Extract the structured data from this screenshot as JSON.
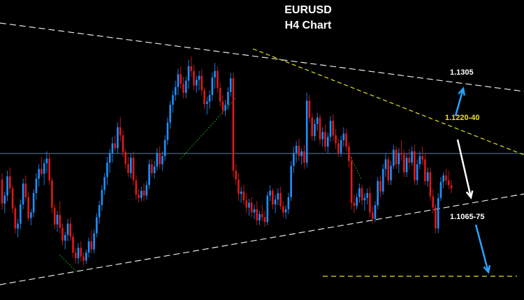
{
  "chart_data": {
    "type": "candlestick",
    "title": "EURUSD",
    "subtitle": "H4 Chart",
    "background": "#000000",
    "colors": {
      "bull": "#1e90ff",
      "bear": "#e01818",
      "wick": "#c8c8c8",
      "trendline": "#e8e8e8",
      "resistance_line": "#e0e020",
      "target_line": "#e0e020",
      "guide_line": "#10a010",
      "hline": "#5a7fa0",
      "arrow_up": "#2aa3ff",
      "arrow_down_white": "#ffffff",
      "arrow_down_blue": "#2aa3ff"
    },
    "price_range_approx": [
      1.095,
      1.14
    ],
    "annotations": [
      {
        "text": "1.1305",
        "color": "#ffffff",
        "kind": "upside target"
      },
      {
        "text": "1.1220-40",
        "color": "#f0e020",
        "kind": "resistance"
      },
      {
        "text": "1.1065-75",
        "color": "#ffffff",
        "kind": "downside target"
      }
    ],
    "candles_ohlc": [
      [
        1.1157,
        1.1165,
        1.112,
        1.1127
      ],
      [
        1.1127,
        1.1142,
        1.1115,
        1.1137
      ],
      [
        1.1137,
        1.1168,
        1.113,
        1.1161
      ],
      [
        1.1161,
        1.1172,
        1.114,
        1.1146
      ],
      [
        1.1146,
        1.115,
        1.1115,
        1.1121
      ],
      [
        1.1121,
        1.1125,
        1.109,
        1.1096
      ],
      [
        1.1096,
        1.1108,
        1.1085,
        1.1102
      ],
      [
        1.1102,
        1.1132,
        1.1095,
        1.1126
      ],
      [
        1.1126,
        1.1158,
        1.112,
        1.1152
      ],
      [
        1.1152,
        1.1162,
        1.113,
        1.1135
      ],
      [
        1.1135,
        1.1142,
        1.1105,
        1.1109
      ],
      [
        1.1109,
        1.112,
        1.11,
        1.1116
      ],
      [
        1.1116,
        1.1145,
        1.111,
        1.114
      ],
      [
        1.114,
        1.1165,
        1.1132,
        1.1158
      ],
      [
        1.1158,
        1.1176,
        1.1148,
        1.117
      ],
      [
        1.117,
        1.1185,
        1.116,
        1.1164
      ],
      [
        1.1164,
        1.1182,
        1.115,
        1.1177
      ],
      [
        1.1177,
        1.1192,
        1.1165,
        1.1183
      ],
      [
        1.1183,
        1.119,
        1.115,
        1.1156
      ],
      [
        1.1156,
        1.116,
        1.1115,
        1.1122
      ],
      [
        1.1122,
        1.1126,
        1.1095,
        1.1101
      ],
      [
        1.1101,
        1.1118,
        1.1092,
        1.1113
      ],
      [
        1.1113,
        1.113,
        1.109,
        1.1097
      ],
      [
        1.1097,
        1.1103,
        1.1075,
        1.1081
      ],
      [
        1.1081,
        1.1092,
        1.107,
        1.1088
      ],
      [
        1.1088,
        1.1108,
        1.108,
        1.1102
      ],
      [
        1.1102,
        1.111,
        1.108,
        1.1086
      ],
      [
        1.1086,
        1.109,
        1.106,
        1.1066
      ],
      [
        1.1066,
        1.1072,
        1.1052,
        1.1059
      ],
      [
        1.1059,
        1.1078,
        1.1052,
        1.1072
      ],
      [
        1.1072,
        1.108,
        1.1055,
        1.1061
      ],
      [
        1.1061,
        1.1066,
        1.105,
        1.1056
      ],
      [
        1.1056,
        1.107,
        1.1052,
        1.1066
      ],
      [
        1.1066,
        1.1085,
        1.106,
        1.108
      ],
      [
        1.108,
        1.1094,
        1.1065,
        1.107
      ],
      [
        1.107,
        1.1095,
        1.1065,
        1.109
      ],
      [
        1.109,
        1.1115,
        1.1085,
        1.111
      ],
      [
        1.111,
        1.113,
        1.1102,
        1.1125
      ],
      [
        1.1125,
        1.115,
        1.1118,
        1.1144
      ],
      [
        1.1144,
        1.1165,
        1.1138,
        1.116
      ],
      [
        1.116,
        1.1185,
        1.115,
        1.1178
      ],
      [
        1.1178,
        1.1195,
        1.1165,
        1.119
      ],
      [
        1.119,
        1.121,
        1.1178,
        1.1202
      ],
      [
        1.1202,
        1.1212,
        1.1192,
        1.1196
      ],
      [
        1.1196,
        1.1228,
        1.119,
        1.1222
      ],
      [
        1.1222,
        1.1235,
        1.1205,
        1.1212
      ],
      [
        1.1212,
        1.1218,
        1.1185,
        1.1191
      ],
      [
        1.1191,
        1.1195,
        1.117,
        1.1176
      ],
      [
        1.1176,
        1.1185,
        1.116,
        1.1165
      ],
      [
        1.1165,
        1.119,
        1.1158,
        1.1184
      ],
      [
        1.1184,
        1.1192,
        1.115,
        1.1156
      ],
      [
        1.1156,
        1.1162,
        1.1132,
        1.1138
      ],
      [
        1.1138,
        1.1145,
        1.1128,
        1.1134
      ],
      [
        1.1134,
        1.1148,
        1.113,
        1.1143
      ],
      [
        1.1143,
        1.1152,
        1.113,
        1.1137
      ],
      [
        1.1137,
        1.1155,
        1.1132,
        1.115
      ],
      [
        1.115,
        1.1182,
        1.1145,
        1.1176
      ],
      [
        1.1176,
        1.1182,
        1.116,
        1.1165
      ],
      [
        1.1165,
        1.118,
        1.1158,
        1.1173
      ],
      [
        1.1173,
        1.1196,
        1.1168,
        1.119
      ],
      [
        1.119,
        1.1198,
        1.117,
        1.1176
      ],
      [
        1.1176,
        1.1192,
        1.1168,
        1.1186
      ],
      [
        1.1186,
        1.1212,
        1.118,
        1.1206
      ],
      [
        1.1206,
        1.1234,
        1.12,
        1.1228
      ],
      [
        1.1228,
        1.1255,
        1.122,
        1.125
      ],
      [
        1.125,
        1.1268,
        1.124,
        1.1262
      ],
      [
        1.1262,
        1.128,
        1.1255,
        1.1272
      ],
      [
        1.1272,
        1.1295,
        1.1262,
        1.1288
      ],
      [
        1.1288,
        1.1298,
        1.127,
        1.1276
      ],
      [
        1.1276,
        1.1285,
        1.1258,
        1.1265
      ],
      [
        1.1265,
        1.1285,
        1.1258,
        1.128
      ],
      [
        1.128,
        1.1306,
        1.127,
        1.1298
      ],
      [
        1.1298,
        1.131,
        1.1285,
        1.1292
      ],
      [
        1.1292,
        1.13,
        1.1268,
        1.1274
      ],
      [
        1.1274,
        1.1286,
        1.1265,
        1.1281
      ],
      [
        1.1281,
        1.1292,
        1.1268,
        1.1286
      ],
      [
        1.1286,
        1.1294,
        1.1262,
        1.1268
      ],
      [
        1.1268,
        1.1272,
        1.1245,
        1.1251
      ],
      [
        1.1251,
        1.126,
        1.1238,
        1.1254
      ],
      [
        1.1254,
        1.1268,
        1.1245,
        1.1262
      ],
      [
        1.1262,
        1.129,
        1.1255,
        1.1284
      ],
      [
        1.1284,
        1.1302,
        1.127,
        1.1292
      ],
      [
        1.1292,
        1.1298,
        1.1265,
        1.1271
      ],
      [
        1.1271,
        1.1278,
        1.1248,
        1.1254
      ],
      [
        1.1254,
        1.1262,
        1.1238,
        1.1243
      ],
      [
        1.1243,
        1.1256,
        1.1236,
        1.125
      ],
      [
        1.125,
        1.1272,
        1.1244,
        1.1266
      ],
      [
        1.1266,
        1.129,
        1.126,
        1.1283
      ],
      [
        1.1283,
        1.129,
        1.116,
        1.1168
      ],
      [
        1.1168,
        1.1176,
        1.115,
        1.1157
      ],
      [
        1.1157,
        1.1165,
        1.113,
        1.1139
      ],
      [
        1.1139,
        1.1148,
        1.1128,
        1.1142
      ],
      [
        1.1142,
        1.115,
        1.1125,
        1.1131
      ],
      [
        1.1131,
        1.114,
        1.1115,
        1.1122
      ],
      [
        1.1122,
        1.1133,
        1.1112,
        1.1128
      ],
      [
        1.1128,
        1.1135,
        1.111,
        1.1116
      ],
      [
        1.1116,
        1.1126,
        1.1108,
        1.112
      ],
      [
        1.112,
        1.113,
        1.11,
        1.1106
      ],
      [
        1.1106,
        1.1118,
        1.11,
        1.1114
      ],
      [
        1.1114,
        1.1125,
        1.1105,
        1.111
      ],
      [
        1.111,
        1.1118,
        1.1098,
        1.1104
      ],
      [
        1.1104,
        1.1142,
        1.11,
        1.1137
      ],
      [
        1.1137,
        1.115,
        1.113,
        1.1143
      ],
      [
        1.1143,
        1.1146,
        1.112,
        1.1126
      ],
      [
        1.1126,
        1.1138,
        1.1115,
        1.1132
      ],
      [
        1.1132,
        1.1146,
        1.1125,
        1.114
      ],
      [
        1.114,
        1.1148,
        1.112,
        1.1124
      ],
      [
        1.1124,
        1.113,
        1.111,
        1.1116
      ],
      [
        1.1116,
        1.1125,
        1.1108,
        1.112
      ],
      [
        1.112,
        1.114,
        1.1114,
        1.1135
      ],
      [
        1.1135,
        1.118,
        1.113,
        1.1174
      ],
      [
        1.1174,
        1.1198,
        1.1165,
        1.119
      ],
      [
        1.119,
        1.1205,
        1.1178,
        1.1199
      ],
      [
        1.1199,
        1.1208,
        1.118,
        1.1186
      ],
      [
        1.1186,
        1.1196,
        1.1175,
        1.1192
      ],
      [
        1.1192,
        1.12,
        1.117,
        1.1178
      ],
      [
        1.1178,
        1.1265,
        1.1172,
        1.1255
      ],
      [
        1.1255,
        1.1262,
        1.1228,
        1.1234
      ],
      [
        1.1234,
        1.124,
        1.1205,
        1.1211
      ],
      [
        1.1211,
        1.1232,
        1.1205,
        1.1226
      ],
      [
        1.1226,
        1.124,
        1.1218,
        1.1234
      ],
      [
        1.1234,
        1.1238,
        1.12,
        1.1207
      ],
      [
        1.1207,
        1.1222,
        1.1198,
        1.1216
      ],
      [
        1.1216,
        1.1225,
        1.1192,
        1.1198
      ],
      [
        1.1198,
        1.1215,
        1.119,
        1.121
      ],
      [
        1.121,
        1.1236,
        1.1204,
        1.123
      ],
      [
        1.123,
        1.1238,
        1.1205,
        1.1212
      ],
      [
        1.1212,
        1.122,
        1.1195,
        1.1202
      ],
      [
        1.1202,
        1.1208,
        1.1185,
        1.119
      ],
      [
        1.119,
        1.1212,
        1.1185,
        1.1206
      ],
      [
        1.1206,
        1.1222,
        1.1198,
        1.1214
      ],
      [
        1.1214,
        1.122,
        1.1192,
        1.1198
      ],
      [
        1.1198,
        1.1204,
        1.1172,
        1.118
      ],
      [
        1.118,
        1.1186,
        1.112,
        1.1128
      ],
      [
        1.1128,
        1.1138,
        1.1115,
        1.1124
      ],
      [
        1.1124,
        1.114,
        1.112,
        1.1135
      ],
      [
        1.1135,
        1.1152,
        1.1128,
        1.1146
      ],
      [
        1.1146,
        1.115,
        1.1125,
        1.1131
      ],
      [
        1.1131,
        1.114,
        1.1118,
        1.1134
      ],
      [
        1.1134,
        1.1146,
        1.1126,
        1.114
      ],
      [
        1.114,
        1.1148,
        1.111,
        1.1116
      ],
      [
        1.1116,
        1.1124,
        1.1102,
        1.1108
      ],
      [
        1.1108,
        1.113,
        1.1104,
        1.1125
      ],
      [
        1.1125,
        1.116,
        1.112,
        1.1155
      ],
      [
        1.1155,
        1.1162,
        1.1135,
        1.1142
      ],
      [
        1.1142,
        1.1176,
        1.1138,
        1.117
      ],
      [
        1.117,
        1.119,
        1.116,
        1.1182
      ],
      [
        1.1182,
        1.1186,
        1.115,
        1.1156
      ],
      [
        1.1156,
        1.118,
        1.115,
        1.1174
      ],
      [
        1.1174,
        1.12,
        1.117,
        1.1194
      ],
      [
        1.1194,
        1.1198,
        1.117,
        1.1176
      ],
      [
        1.1176,
        1.1196,
        1.1165,
        1.119
      ],
      [
        1.119,
        1.1206,
        1.118,
        1.1188
      ],
      [
        1.1188,
        1.1194,
        1.116,
        1.1166
      ],
      [
        1.1166,
        1.119,
        1.116,
        1.1184
      ],
      [
        1.1184,
        1.1195,
        1.117,
        1.1178
      ],
      [
        1.1178,
        1.1198,
        1.1174,
        1.1192
      ],
      [
        1.1192,
        1.12,
        1.115,
        1.1156
      ],
      [
        1.1156,
        1.1182,
        1.115,
        1.1176
      ],
      [
        1.1176,
        1.1192,
        1.117,
        1.1186
      ],
      [
        1.1186,
        1.1198,
        1.1175,
        1.1182
      ],
      [
        1.1182,
        1.1188,
        1.115,
        1.1155
      ],
      [
        1.1155,
        1.1172,
        1.1148,
        1.1166
      ],
      [
        1.1166,
        1.1172,
        1.113,
        1.1136
      ],
      [
        1.1136,
        1.1145,
        1.1115,
        1.1122
      ],
      [
        1.1122,
        1.1126,
        1.109,
        1.1096
      ],
      [
        1.1096,
        1.114,
        1.109,
        1.1134
      ],
      [
        1.1134,
        1.116,
        1.113,
        1.1154
      ],
      [
        1.1154,
        1.1166,
        1.1146,
        1.1162
      ],
      [
        1.1162,
        1.117,
        1.115,
        1.1156
      ],
      [
        1.1156,
        1.1168,
        1.1145,
        1.115
      ],
      [
        1.115,
        1.1156,
        1.114,
        1.1146
      ]
    ]
  },
  "labels": {
    "upper_target": "1.1305",
    "resistance": "1.1220-40",
    "lower_target": "1.1065-75"
  }
}
